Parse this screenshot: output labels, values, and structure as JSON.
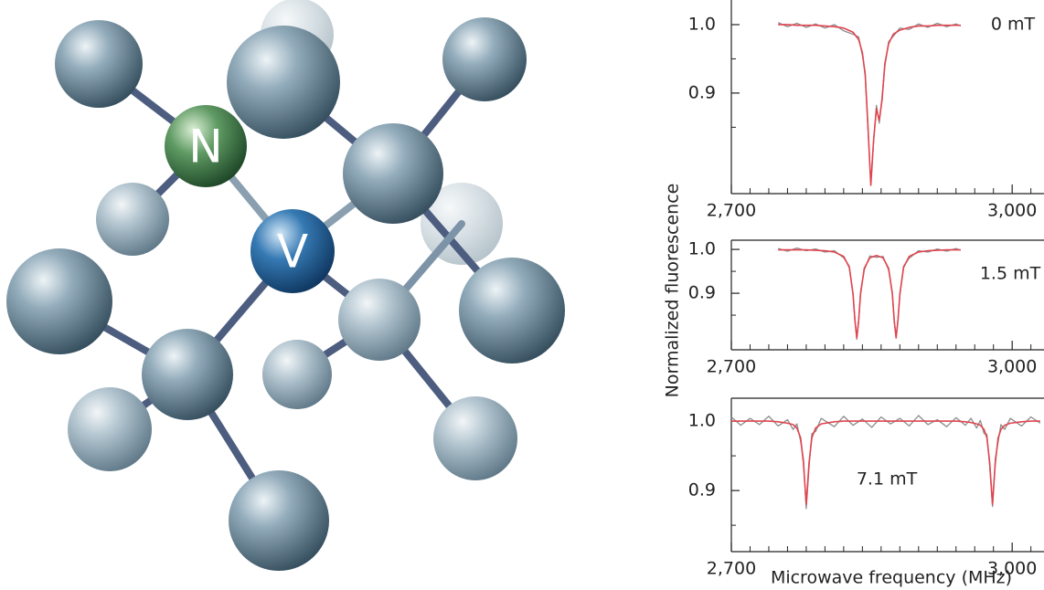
{
  "illustration": {
    "labels": [
      "N",
      "V"
    ]
  },
  "chart_data": [
    {
      "type": "line",
      "annotation": "0 mT",
      "x": [
        2750,
        2760,
        2770,
        2780,
        2790,
        2800,
        2810,
        2820,
        2830,
        2836,
        2840,
        2843,
        2846,
        2849,
        2852,
        2855,
        2858,
        2861,
        2864,
        2868,
        2873,
        2880,
        2890,
        2900,
        2910,
        2920,
        2930,
        2940,
        2945
      ],
      "series": [
        {
          "color": "#8c8c8c",
          "values": [
            1.003,
            0.997,
            1.002,
            0.996,
            1.001,
            0.995,
            1.0,
            0.991,
            0.986,
            0.982,
            0.955,
            0.93,
            0.846,
            0.769,
            0.829,
            0.882,
            0.856,
            0.894,
            0.939,
            0.975,
            0.983,
            0.995,
            0.993,
            1.001,
            0.996,
            1.002,
            0.997,
            1.001,
            0.998
          ]
        },
        {
          "color": "#e0454f",
          "values": [
            1.0,
            1.0,
            0.999,
            0.999,
            0.999,
            0.998,
            0.997,
            0.995,
            0.989,
            0.978,
            0.959,
            0.926,
            0.85,
            0.765,
            0.832,
            0.877,
            0.86,
            0.89,
            0.943,
            0.972,
            0.986,
            0.992,
            0.996,
            0.998,
            0.998,
            0.999,
            0.999,
            0.999,
            0.999
          ]
        }
      ],
      "xlim": [
        2700,
        3034
      ],
      "xticks": [
        {
          "value": 2700,
          "label": "2,700"
        },
        {
          "value": 3000,
          "label": "3,000"
        }
      ],
      "xminorticks": [
        2720,
        2740,
        2760,
        2780,
        2800,
        2820,
        2840,
        2860,
        2880,
        2900,
        2920,
        2940,
        2960,
        2980,
        3020
      ],
      "ylim": [
        0.753,
        1.036
      ],
      "yticks": [
        {
          "value": 1,
          "label": "1.0"
        },
        0.9
      ],
      "yminorticks": [
        0.85,
        0.95
      ]
    },
    {
      "type": "line",
      "annotation": "1.5 mT",
      "ylabel": "Normalized fluorescence",
      "x": [
        2750,
        2760,
        2770,
        2780,
        2790,
        2800,
        2810,
        2820,
        2826,
        2830,
        2832,
        2834,
        2836,
        2838,
        2842,
        2848,
        2855,
        2862,
        2868,
        2872,
        2874,
        2876,
        2878,
        2880,
        2884,
        2890,
        2900,
        2910,
        2920,
        2930,
        2940,
        2945
      ],
      "series": [
        {
          "color": "#8c8c8c",
          "values": [
            1.002,
            0.996,
            1.003,
            0.997,
            1.001,
            0.994,
            0.997,
            0.981,
            0.962,
            0.895,
            0.842,
            0.795,
            0.835,
            0.903,
            0.953,
            0.985,
            0.982,
            0.984,
            0.953,
            0.902,
            0.834,
            0.801,
            0.841,
            0.894,
            0.962,
            0.98,
            0.997,
            0.994,
            1.001,
            0.996,
            1.002,
            0.998
          ]
        },
        {
          "color": "#e0454f",
          "values": [
            0.999,
            0.999,
            0.999,
            0.999,
            0.998,
            0.997,
            0.994,
            0.984,
            0.959,
            0.899,
            0.838,
            0.798,
            0.838,
            0.898,
            0.957,
            0.981,
            0.986,
            0.981,
            0.957,
            0.898,
            0.838,
            0.798,
            0.838,
            0.898,
            0.959,
            0.984,
            0.994,
            0.997,
            0.998,
            0.999,
            0.999,
            0.999
          ]
        }
      ],
      "xlim": [
        2700,
        3034
      ],
      "xticks": [
        {
          "value": 2700,
          "label": "2,700"
        },
        {
          "value": 3000,
          "label": "3,000"
        }
      ],
      "xminorticks": [
        2720,
        2740,
        2760,
        2780,
        2800,
        2820,
        2840,
        2860,
        2880,
        2900,
        2920,
        2940,
        2960,
        2980,
        3020
      ],
      "ylim": [
        0.771,
        1.021
      ],
      "yticks": [
        {
          "value": 1,
          "label": "1.0"
        },
        0.9
      ],
      "yminorticks": [
        0.85,
        0.95
      ]
    },
    {
      "type": "line",
      "annotation": "7.1 mT",
      "xlabel": "Microwave frequency (MHz)",
      "x": [
        2700,
        2710,
        2720,
        2730,
        2740,
        2750,
        2760,
        2766,
        2770,
        2774,
        2777,
        2780,
        2783,
        2786,
        2790,
        2796,
        2810,
        2820,
        2830,
        2840,
        2850,
        2860,
        2870,
        2880,
        2890,
        2900,
        2910,
        2920,
        2930,
        2940,
        2950,
        2956,
        2962,
        2966,
        2970,
        2973,
        2976,
        2979,
        2982,
        2985,
        2988,
        2992,
        2998,
        3010,
        3020,
        3030
      ],
      "series": [
        {
          "color": "#8c8c8c",
          "values": [
            1.006,
            0.994,
            1.004,
            0.995,
            1.007,
            0.993,
            1.002,
            0.988,
            0.996,
            0.971,
            0.946,
            0.874,
            0.934,
            0.982,
            0.985,
            1.004,
            0.992,
            1.007,
            0.994,
            1.003,
            0.991,
            1.006,
            0.996,
            1.004,
            0.993,
            1.008,
            0.995,
            1.002,
            0.992,
            1.005,
            0.994,
            1.004,
            0.99,
            1.001,
            0.982,
            0.981,
            0.935,
            0.877,
            0.946,
            0.97,
            0.995,
            0.988,
            1.004,
            0.993,
            1.006,
            0.997
          ]
        },
        {
          "color": "#e0454f",
          "values": [
            1.0,
            1.0,
            1.0,
            1.0,
            1.0,
            0.999,
            0.997,
            0.995,
            0.99,
            0.976,
            0.94,
            0.88,
            0.94,
            0.976,
            0.99,
            0.996,
            0.999,
            1.0,
            1.0,
            1.0,
            1.0,
            1.0,
            1.0,
            1.0,
            1.0,
            1.0,
            1.0,
            1.0,
            1.0,
            1.0,
            0.999,
            0.998,
            0.996,
            0.994,
            0.988,
            0.976,
            0.94,
            0.88,
            0.94,
            0.976,
            0.988,
            0.994,
            0.997,
            0.999,
            1.0,
            1.0
          ]
        }
      ],
      "xlim": [
        2700,
        3034
      ],
      "xticks": [
        {
          "value": 2700,
          "label": "2,700"
        },
        {
          "value": 3000,
          "label": "3,000"
        }
      ],
      "xminorticks": [
        2720,
        2740,
        2760,
        2780,
        2800,
        2820,
        2840,
        2860,
        2880,
        2900,
        2920,
        2940,
        2960,
        2980,
        3020
      ],
      "ylim": [
        0.812,
        1.033
      ],
      "yticks": [
        {
          "value": 1,
          "label": "1.0"
        },
        0.9
      ],
      "yminorticks": [
        0.85,
        0.95
      ]
    }
  ]
}
